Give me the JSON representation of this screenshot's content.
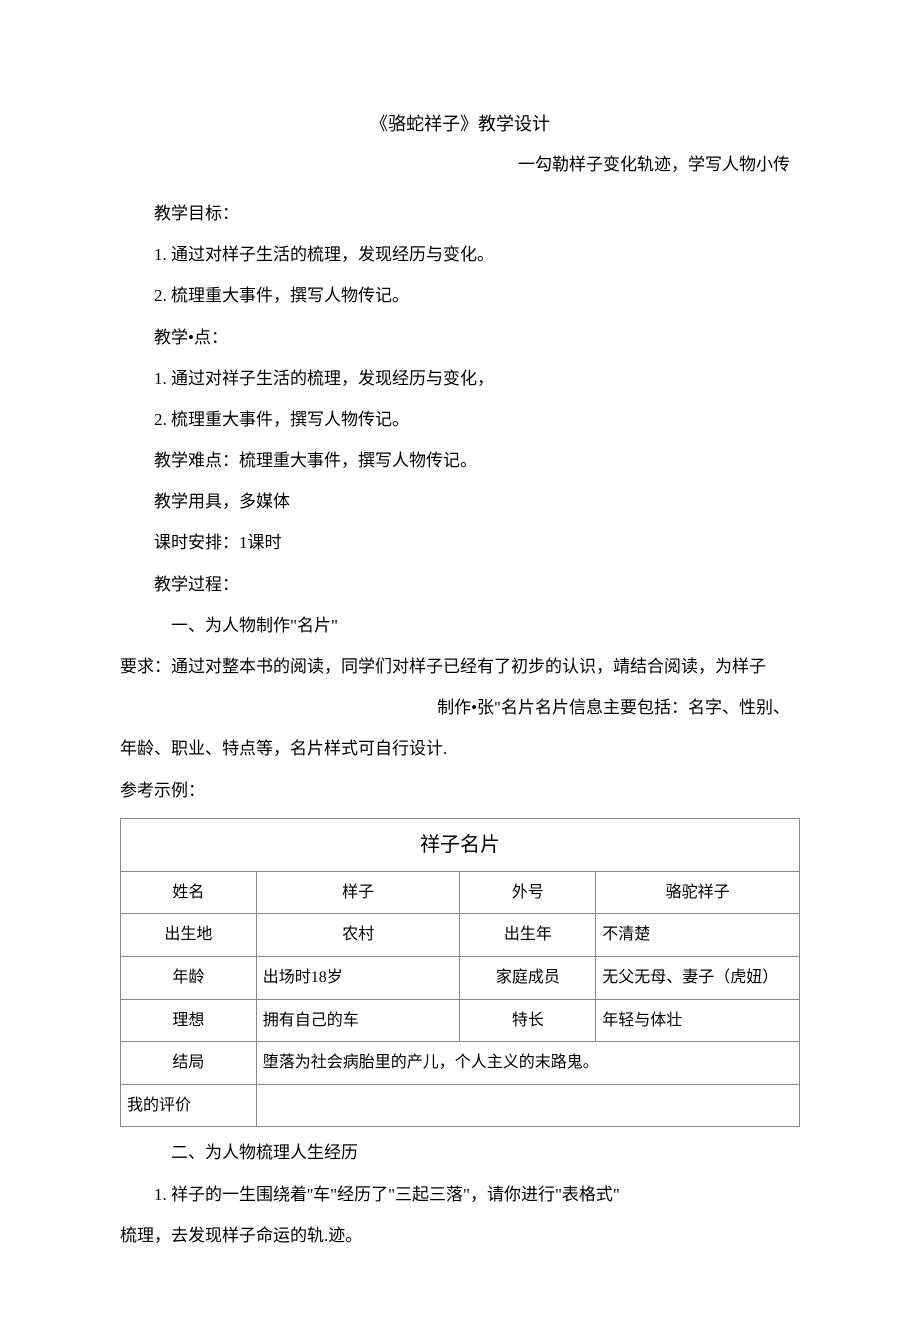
{
  "doc": {
    "title": "《骆蛇祥子》教学设计",
    "subtitle": "一勾勒样子变化轨迹，学写人物小传",
    "objective_heading": "教学目标：",
    "objective_1": "1. 通过对样子生活的梳理，发现经历与变化。",
    "objective_2": "2. 梳理重大事件，撰写人物传记。",
    "keypoint_heading": "教学•点：",
    "keypoint_1": "1. 通过对祥子生活的梳理，发现经历与变化，",
    "keypoint_2": "2. 梳理重大事件，撰写人物传记。",
    "difficulty": "教学难点：梳理重大事件，撰写人物传记。",
    "tools": "教学用具，多媒体",
    "lesson_time": "课时安排：1课时",
    "process_heading": "教学过程：",
    "section1_heading": "一、为人物制作\"名片\"",
    "section1_req_line1": "要求：通过对整本书的阅读，同学们对样子已经有了初步的认识，靖结合阅读，为样子",
    "section1_req_line2": "制作•张\"名片名片信息主要包括：名字、性别、",
    "section1_req_line3": "年龄、职业、特点等，名片样式可自行设计.",
    "example_heading": "参考示例：",
    "section2_heading": "二、为人物梳理人生经历",
    "section2_p1": "1. 祥子的一生围绕着''车\"经历了\"三起三落\"，请你进行\"表格式\"",
    "section2_p2": "梳理，去发现样子命运的轨.迹。"
  },
  "table": {
    "title": "祥子名片",
    "rows": {
      "r1": {
        "l1": "姓名",
        "v1": "样子",
        "l2": "外号",
        "v2": "骆驼祥子"
      },
      "r2": {
        "l1": "出生地",
        "v1": "农村",
        "l2": "出生年",
        "v2": "不清楚"
      },
      "r3": {
        "l1": "年龄",
        "v1": "出场时18岁",
        "l2": "家庭成员",
        "v2": "无父无母、妻子（虎妞）"
      },
      "r4": {
        "l1": "理想",
        "v1": "拥有自己的车",
        "l2": "特长",
        "v2": "年轻与体壮"
      },
      "r5": {
        "l1": "结局",
        "v1": "堕落为社会病胎里的产儿，个人主义的末路鬼。"
      },
      "r6": {
        "l1": "我的评价",
        "v1": ""
      }
    }
  },
  "style": {
    "text_color": "#000000",
    "bg_color": "#ffffff",
    "border_color": "#888888",
    "body_font_size": 17,
    "title_font_size": 18,
    "table_title_font_size": 20,
    "table_font_size": 16
  }
}
